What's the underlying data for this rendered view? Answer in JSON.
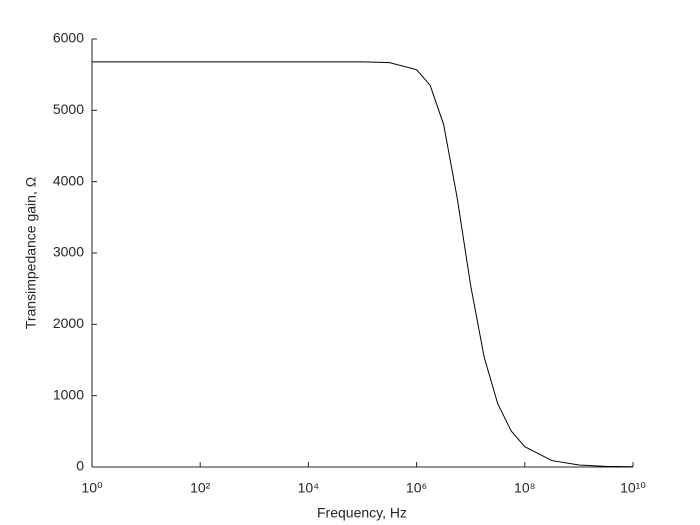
{
  "chart_data": {
    "type": "line",
    "xlabel": "Frequency, Hz",
    "ylabel": "Transimpedance gain, Ω",
    "xscale": "log",
    "x": [
      1,
      10,
      100,
      1000,
      10000,
      100000,
      316228,
      1000000,
      1778279,
      3162278,
      5623413,
      10000000,
      17782794,
      31622777,
      56234133,
      100000000,
      316227766,
      1000000000,
      3162277660,
      10000000000
    ],
    "series": [
      {
        "color": "#000000",
        "values": [
          5680,
          5680,
          5680,
          5680,
          5680,
          5679,
          5669,
          5570,
          5352,
          4801,
          3774,
          2540,
          1537,
          887,
          503,
          284,
          90,
          28,
          9,
          3
        ]
      }
    ],
    "xlim": [
      1,
      10000000000
    ],
    "xticks": [
      {
        "value": 1,
        "label": "10⁰"
      },
      {
        "value": 100,
        "label": "10²"
      },
      {
        "value": 10000,
        "label": "10⁴"
      },
      {
        "value": 1000000,
        "label": "10⁶"
      },
      {
        "value": 100000000,
        "label": "10⁸"
      },
      {
        "value": 10000000000,
        "label": "10¹⁰"
      }
    ],
    "ylim": [
      0,
      6000
    ],
    "yticks": [
      0,
      1000,
      2000,
      3000,
      4000,
      5000,
      6000
    ]
  }
}
